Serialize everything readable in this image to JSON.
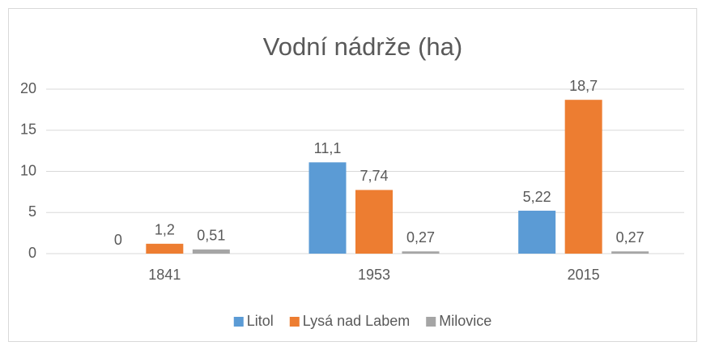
{
  "chart_data": {
    "type": "bar",
    "title": "Vodní nádrže (ha)",
    "categories": [
      "1841",
      "1953",
      "2015"
    ],
    "series": [
      {
        "name": "Litol",
        "color": "#5b9bd5",
        "values": [
          0,
          11.1,
          5.22
        ],
        "value_labels": [
          "0",
          "11,1",
          "5,22"
        ]
      },
      {
        "name": "Lysá nad Labem",
        "color": "#ed7d31",
        "values": [
          1.2,
          7.74,
          18.7
        ],
        "value_labels": [
          "1,2",
          "7,74",
          "18,7"
        ]
      },
      {
        "name": "Milovice",
        "color": "#a5a5a5",
        "values": [
          0.51,
          0.27,
          0.27
        ],
        "value_labels": [
          "0,51",
          "0,27",
          "0,27"
        ]
      }
    ],
    "ylim": [
      0,
      20
    ],
    "yticks": [
      0,
      5,
      10,
      15,
      20
    ],
    "grid": true,
    "legend": "bottom"
  }
}
